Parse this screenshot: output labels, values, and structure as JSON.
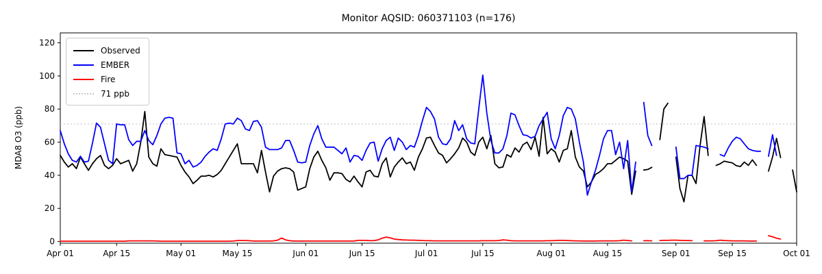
{
  "title": "Monitor AQSID: 060371103 (n=176)",
  "y_axis": {
    "label": "MDA8 O3 (ppb)",
    "ticks": [
      0,
      20,
      40,
      60,
      80,
      100,
      120
    ]
  },
  "x_axis": {
    "tick_labels": [
      "Apr 01",
      "Apr 15",
      "May 01",
      "May 15",
      "Jun 01",
      "Jun 15",
      "Jul 01",
      "Jul 15",
      "Aug 01",
      "Aug 15",
      "Sep 01",
      "Sep 15",
      "Oct 01"
    ],
    "tick_days": [
      0,
      14,
      30,
      44,
      61,
      75,
      91,
      105,
      122,
      136,
      153,
      167,
      183
    ]
  },
  "legend": {
    "items": [
      {
        "label": "Observed",
        "color": "#000000",
        "style": "solid"
      },
      {
        "label": "EMBER",
        "color": "#0000ff",
        "style": "solid"
      },
      {
        "label": "Fire",
        "color": "#ff0000",
        "style": "solid"
      },
      {
        "label": "71 ppb",
        "color": "#c8c8c8",
        "style": "dotted"
      }
    ]
  },
  "threshold": {
    "value": 71,
    "label": "71 ppb",
    "color": "#c8c8c8"
  },
  "chart_data": {
    "type": "line",
    "title": "Monitor AQSID: 060371103 (n=176)",
    "xlabel": "",
    "ylabel": "MDA8 O3 (ppb)",
    "x_unit": "days since Apr 01",
    "x_days_total": 183,
    "ylim": [
      -1,
      126
    ],
    "grid": false,
    "legend_position": "upper left",
    "n_observed": 176,
    "threshold_ppb": 71,
    "series": [
      {
        "name": "Observed",
        "color": "#000000",
        "values": [
          52,
          48,
          45,
          47,
          44,
          51,
          47,
          43,
          47,
          50,
          52,
          46,
          44,
          46,
          50,
          47,
          48,
          49,
          42.5,
          47,
          60,
          78.5,
          51,
          47,
          45.5,
          56,
          52.5,
          52,
          51.5,
          51,
          46,
          42,
          39,
          35,
          37,
          39.5,
          39.5,
          40,
          39,
          40.5,
          43,
          47,
          51,
          55,
          59,
          47,
          47,
          47,
          47,
          41.5,
          55,
          42,
          30,
          39.5,
          42.5,
          44,
          44.5,
          44,
          42,
          31,
          32,
          33,
          44,
          51,
          54.5,
          49,
          44.5,
          37,
          41.5,
          41.5,
          41,
          37.5,
          36,
          39.5,
          36,
          33,
          42,
          43,
          39.5,
          39,
          47,
          50.5,
          39,
          45,
          48,
          50.5,
          47,
          48,
          43,
          51,
          56,
          62.5,
          63,
          58,
          53.5,
          52,
          47.5,
          50,
          53,
          56.5,
          62.5,
          60,
          54,
          52,
          60,
          63,
          56,
          64,
          47,
          44.5,
          45,
          52.5,
          51,
          56.5,
          54,
          58.5,
          60,
          55.5,
          63,
          51.5,
          75,
          53,
          56,
          54,
          48,
          55,
          56,
          67,
          51,
          45,
          42.5,
          33,
          36,
          40.5,
          42,
          44,
          47,
          47,
          49,
          51,
          50,
          48.5,
          28.5,
          42.5,
          null,
          43.2,
          43.5,
          44.8,
          null,
          61.5,
          80,
          83.5,
          null,
          51,
          32,
          24,
          40,
          40,
          35,
          58,
          75.5,
          52,
          null,
          46,
          47,
          48.5,
          48,
          47.5,
          45.8,
          45.3,
          48,
          46,
          49.3,
          46,
          null,
          null,
          42.5,
          51,
          62.3,
          50.7,
          null,
          null,
          43.2,
          30
        ]
      },
      {
        "name": "EMBER",
        "color": "#0000ff",
        "values": [
          67,
          59,
          53,
          49,
          48,
          51.5,
          48,
          48.5,
          59.5,
          71.5,
          69,
          59,
          49,
          47,
          71,
          70.5,
          70.5,
          61.5,
          58,
          60.5,
          60.5,
          67,
          61,
          58.5,
          64,
          71,
          74.5,
          75,
          74.5,
          53.5,
          53,
          47,
          49,
          45,
          46,
          48,
          51.5,
          54,
          56,
          55,
          62,
          71,
          71.5,
          71,
          74.5,
          73,
          68,
          67,
          72.5,
          73,
          69,
          57,
          55.5,
          55.5,
          55.5,
          56.5,
          61,
          61,
          55,
          48,
          47.5,
          48,
          58,
          65,
          70,
          62,
          57,
          57,
          57,
          55,
          53,
          56.5,
          48,
          52,
          51.5,
          49,
          55,
          59.5,
          60,
          48.5,
          56,
          61,
          63,
          55,
          62.5,
          60,
          55.5,
          58,
          57,
          64,
          73,
          81,
          78.5,
          74,
          63,
          59,
          58.5,
          62,
          73,
          67,
          70.5,
          62,
          59.5,
          59,
          80,
          100.5,
          77.5,
          61,
          53.5,
          53.5,
          56,
          64,
          77.5,
          76.5,
          70,
          64.5,
          64,
          62.5,
          63.5,
          70,
          74,
          78,
          62,
          56,
          64,
          76,
          81,
          80,
          74,
          60,
          48,
          28,
          36,
          43,
          52,
          62,
          67,
          67,
          52.5,
          60,
          44,
          61,
          30,
          48,
          null,
          84,
          64,
          58,
          null,
          null,
          77,
          null,
          null,
          57,
          38,
          38,
          40,
          40,
          58,
          57.5,
          57,
          56,
          null,
          null,
          52.5,
          51.5,
          56.5,
          60.5,
          63,
          62,
          59,
          56,
          55,
          54.5,
          54.5,
          null,
          51.5,
          64.5,
          52,
          null,
          null,
          null,
          null,
          null
        ]
      },
      {
        "name": "Fire",
        "color": "#ff0000",
        "values": [
          0.2,
          0.2,
          0.2,
          0.2,
          0.2,
          0.2,
          0.2,
          0.2,
          0.2,
          0.2,
          0.2,
          0.2,
          0.2,
          0.2,
          0.2,
          0.2,
          0.2,
          0.4,
          0.4,
          0.4,
          0.4,
          0.4,
          0.4,
          0.4,
          0.3,
          0.2,
          0.2,
          0.2,
          0.2,
          0.2,
          0.2,
          0.2,
          0.2,
          0.2,
          0.2,
          0.2,
          0.2,
          0.2,
          0.2,
          0.2,
          0.2,
          0.2,
          0.2,
          0.3,
          0.6,
          0.6,
          0.6,
          0.5,
          0.3,
          0.3,
          0.3,
          0.3,
          0.3,
          0.4,
          0.8,
          2.1,
          1.0,
          0.5,
          0.3,
          0.3,
          0.3,
          0.3,
          0.3,
          0.3,
          0.3,
          0.3,
          0.3,
          0.3,
          0.3,
          0.3,
          0.3,
          0.3,
          0.3,
          0.3,
          0.7,
          0.7,
          0.7,
          0.5,
          0.6,
          1.0,
          2.0,
          2.7,
          2.2,
          1.5,
          1.2,
          1.0,
          0.9,
          0.8,
          0.8,
          0.7,
          0.6,
          0.5,
          0.5,
          0.4,
          0.4,
          0.4,
          0.4,
          0.4,
          0.4,
          0.4,
          0.4,
          0.4,
          0.4,
          0.4,
          0.4,
          0.5,
          0.5,
          0.5,
          0.5,
          0.6,
          1.0,
          0.8,
          0.5,
          0.4,
          0.4,
          0.4,
          0.4,
          0.4,
          0.4,
          0.4,
          0.4,
          0.5,
          0.5,
          0.6,
          0.7,
          0.7,
          0.6,
          0.5,
          0.4,
          0.4,
          0.3,
          0.3,
          0.3,
          0.3,
          0.4,
          0.4,
          0.4,
          0.4,
          0.4,
          0.5,
          0.8,
          0.6,
          0.4,
          null,
          null,
          0.5,
          0.5,
          0.4,
          null,
          0.6,
          0.7,
          0.7,
          0.8,
          0.8,
          0.7,
          0.6,
          0.6,
          0.5,
          null,
          null,
          0.4,
          0.4,
          0.4,
          0.5,
          0.8,
          0.6,
          0.5,
          0.4,
          0.4,
          0.4,
          0.4,
          0.3,
          0.3,
          0.3,
          null,
          null,
          3.5,
          2.9,
          2.0,
          1.5,
          null,
          null,
          null,
          null
        ]
      }
    ]
  },
  "layout_colors": {
    "background": "#ffffff",
    "spine": "#000000",
    "tick_label": "#000000"
  }
}
